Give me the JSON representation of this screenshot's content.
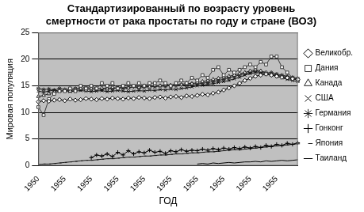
{
  "chart_data": {
    "type": "line",
    "title": [
      "Стандартизированный по возрасту уровень",
      "смертности от рака простаты по году и стране (ВОЗ)"
    ],
    "x_label": "ГОД",
    "y_label": "Мировая популяция",
    "categories": [
      "1950",
      null,
      null,
      null,
      null,
      "1955",
      null,
      null,
      null,
      null,
      "1955",
      null,
      null,
      null,
      null,
      "1955",
      null,
      null,
      null,
      null,
      "1955",
      null,
      null,
      null,
      null,
      "1955",
      null,
      null,
      null,
      null,
      "1955",
      null,
      null,
      null,
      null,
      "1955",
      null,
      null,
      null,
      null,
      "1955",
      null,
      null,
      null,
      null,
      "1955",
      null,
      null,
      null,
      null
    ],
    "ylim": [
      0,
      25
    ],
    "yticks": [
      0,
      5,
      10,
      15,
      20,
      25
    ],
    "grid": true,
    "legend": "right",
    "series": [
      {
        "name": "Великобр.",
        "color": "#000000",
        "marker": "diamond",
        "values": [
          12.0,
          12.2,
          12.1,
          12.3,
          12.4,
          12.2,
          12.5,
          12.3,
          12.4,
          12.6,
          12.5,
          12.4,
          12.6,
          12.5,
          12.7,
          12.6,
          12.5,
          12.7,
          12.6,
          12.8,
          12.7,
          12.6,
          12.8,
          12.9,
          12.7,
          12.9,
          13.0,
          12.8,
          13.1,
          13.0,
          13.2,
          13.4,
          13.3,
          13.6,
          13.8,
          14.2,
          14.6,
          15.0,
          15.5,
          16.0,
          16.4,
          16.8,
          17.0,
          17.2,
          17.0,
          16.8,
          16.6,
          16.5,
          16.3,
          16.2
        ]
      },
      {
        "name": "Дания",
        "color": "#3a3a3a",
        "marker": "square",
        "values": [
          11.0,
          9.5,
          12.5,
          13.5,
          14.0,
          14.0,
          14.5,
          14.0,
          15.0,
          14.5,
          15.0,
          14.5,
          15.5,
          15.0,
          15.5,
          14.5,
          15.0,
          15.5,
          15.0,
          15.5,
          15.0,
          15.5,
          15.5,
          16.0,
          15.5,
          15.0,
          15.5,
          16.0,
          15.5,
          16.5,
          16.0,
          17.0,
          16.5,
          18.0,
          18.5,
          17.0,
          18.0,
          17.5,
          18.0,
          18.5,
          19.0,
          18.5,
          19.5,
          19.0,
          20.5,
          20.5,
          18.5,
          17.5,
          16.5,
          16.0
        ]
      },
      {
        "name": "Канада",
        "color": "#222222",
        "marker": "triangle",
        "values": [
          13.0,
          13.2,
          13.5,
          13.8,
          14.0,
          14.2,
          14.0,
          14.3,
          14.5,
          14.2,
          14.5,
          14.3,
          14.6,
          14.4,
          14.7,
          14.5,
          14.8,
          14.6,
          14.9,
          14.7,
          15.0,
          14.8,
          15.1,
          15.0,
          15.2,
          15.1,
          15.3,
          15.2,
          15.5,
          15.4,
          15.6,
          15.8,
          16.0,
          16.2,
          16.4,
          16.6,
          16.8,
          17.0,
          17.3,
          17.5,
          17.8,
          18.0,
          17.8,
          17.5,
          17.2,
          17.0,
          16.8,
          16.6,
          16.4,
          16.2
        ]
      },
      {
        "name": "США",
        "color": "#111111",
        "marker": "x",
        "values": [
          14.0,
          13.8,
          14.0,
          14.2,
          14.0,
          14.1,
          13.9,
          14.0,
          14.1,
          14.0,
          13.9,
          14.0,
          14.1,
          13.9,
          14.0,
          14.1,
          14.0,
          13.9,
          14.0,
          14.1,
          14.0,
          14.2,
          14.1,
          14.3,
          14.2,
          14.4,
          14.3,
          14.5,
          14.6,
          14.8,
          15.0,
          15.1,
          15.3,
          15.4,
          15.6,
          15.8,
          16.0,
          16.3,
          16.6,
          17.0,
          17.3,
          17.5,
          17.4,
          17.2,
          17.0,
          16.8,
          16.5,
          16.2,
          16.0,
          15.8
        ]
      },
      {
        "name": "Германия",
        "color": "#2b2b2b",
        "marker": "star",
        "values": [
          14.5,
          14.3,
          14.4,
          14.2,
          14.5,
          14.3,
          14.4,
          14.5,
          14.3,
          14.6,
          14.4,
          14.5,
          14.3,
          14.6,
          14.4,
          14.7,
          14.5,
          14.6,
          14.8,
          14.6,
          14.7,
          14.9,
          14.8,
          15.0,
          14.9,
          15.1,
          15.0,
          15.2,
          15.1,
          15.4,
          15.3,
          15.5,
          15.6,
          15.8,
          16.0,
          16.2,
          16.5,
          16.8,
          17.0,
          17.3,
          17.5,
          17.8,
          17.6,
          17.4,
          17.5,
          17.2,
          17.0,
          16.8,
          16.6,
          16.4
        ]
      },
      {
        "name": "Гонконг",
        "color": "#000000",
        "marker": "plus",
        "values": [
          null,
          null,
          null,
          null,
          null,
          null,
          null,
          null,
          null,
          null,
          1.5,
          2.0,
          1.8,
          2.2,
          1.7,
          2.5,
          2.0,
          2.8,
          2.2,
          2.6,
          2.4,
          2.9,
          2.5,
          2.7,
          2.3,
          2.8,
          2.6,
          3.0,
          2.7,
          2.9,
          2.8,
          3.1,
          2.9,
          3.2,
          3.0,
          3.3,
          3.1,
          3.4,
          3.2,
          3.5,
          3.3,
          3.6,
          3.4,
          3.8,
          3.6,
          4.0,
          3.8,
          4.2,
          4.0,
          4.3
        ]
      },
      {
        "name": "Япония",
        "color": "#1a1a1a",
        "marker": "dash",
        "values": [
          0.2,
          0.3,
          0.3,
          0.4,
          0.5,
          0.6,
          0.7,
          0.8,
          0.9,
          1.0,
          1.0,
          1.1,
          1.2,
          1.3,
          1.3,
          1.4,
          1.5,
          1.6,
          1.6,
          1.7,
          1.8,
          1.8,
          1.9,
          2.0,
          2.0,
          2.1,
          2.2,
          2.2,
          2.3,
          2.4,
          2.4,
          2.5,
          2.6,
          2.6,
          2.7,
          2.8,
          2.9,
          3.0,
          3.0,
          3.1,
          3.2,
          3.3,
          3.4,
          3.5,
          3.6,
          3.7,
          3.8,
          3.9,
          4.0,
          4.1
        ]
      },
      {
        "name": "Таиланд",
        "color": "#000000",
        "marker": "none",
        "values": [
          null,
          null,
          null,
          null,
          null,
          null,
          null,
          null,
          null,
          null,
          null,
          null,
          null,
          null,
          null,
          null,
          null,
          null,
          null,
          null,
          null,
          null,
          null,
          null,
          null,
          null,
          null,
          null,
          null,
          null,
          0.3,
          0.4,
          0.3,
          0.5,
          0.4,
          0.5,
          0.6,
          0.5,
          0.6,
          0.7,
          0.7,
          0.8,
          0.7,
          0.9,
          0.8,
          0.9,
          1.0,
          0.9,
          1.0,
          1.1
        ]
      }
    ]
  }
}
